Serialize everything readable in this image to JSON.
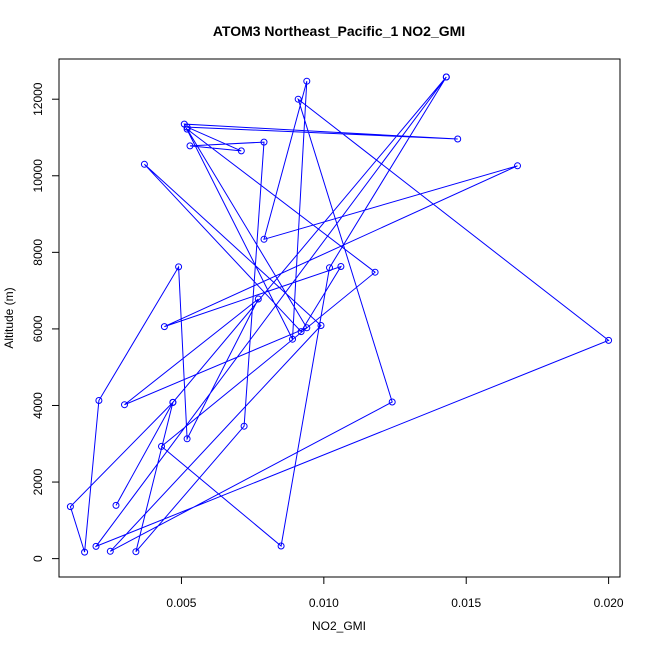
{
  "chart_data": {
    "type": "line",
    "title": "ATOM3 Northeast_Pacific_1 NO2_GMI",
    "xlabel": "NO2_GMI",
    "ylabel": "Altitude (m)",
    "xlim": [
      0.0007,
      0.0204
    ],
    "ylim": [
      -480,
      13050
    ],
    "x_ticks": [
      0.005,
      0.01,
      0.015,
      0.02
    ],
    "x_tick_labels": [
      "0.005",
      "0.010",
      "0.015",
      "0.020"
    ],
    "y_ticks": [
      0,
      2000,
      4000,
      6000,
      8000,
      10000,
      12000
    ],
    "y_tick_labels": [
      "0",
      "2000",
      "4000",
      "6000",
      "8000",
      "10000",
      "12000"
    ],
    "grid": false,
    "legend": "none",
    "series": [
      {
        "color": "#0000ff",
        "marker": "open-circle",
        "points": [
          {
            "x": 0.0143,
            "y": 12580
          },
          {
            "x": 0.0047,
            "y": 4080
          },
          {
            "x": 0.0034,
            "y": 180
          },
          {
            "x": 0.0072,
            "y": 3460
          },
          {
            "x": 0.0079,
            "y": 10880
          },
          {
            "x": 0.0053,
            "y": 10780
          },
          {
            "x": 0.0071,
            "y": 10650
          },
          {
            "x": 0.0052,
            "y": 11270
          },
          {
            "x": 0.0147,
            "y": 10960
          },
          {
            "x": 0.0051,
            "y": 11350
          },
          {
            "x": 0.0089,
            "y": 5730
          },
          {
            "x": 0.0094,
            "y": 12470
          },
          {
            "x": 0.0079,
            "y": 8340
          },
          {
            "x": 0.0168,
            "y": 10260
          },
          {
            "x": 0.0044,
            "y": 6060
          },
          {
            "x": 0.0106,
            "y": 7630
          },
          {
            "x": 0.0092,
            "y": 5930
          },
          {
            "x": 0.0037,
            "y": 10300
          },
          {
            "x": 0.0099,
            "y": 6090
          },
          {
            "x": 0.0025,
            "y": 190
          },
          {
            "x": 0.0124,
            "y": 4090
          },
          {
            "x": 0.0091,
            "y": 12000
          },
          {
            "x": 0.02,
            "y": 5700
          },
          {
            "x": 0.002,
            "y": 320
          },
          {
            "x": 0.0143,
            "y": 12580
          },
          {
            "x": 0.0102,
            "y": 7600
          },
          {
            "x": 0.0085,
            "y": 330
          },
          {
            "x": 0.0043,
            "y": 2930
          },
          {
            "x": 0.0118,
            "y": 7480
          },
          {
            "x": 0.0052,
            "y": 11220
          },
          {
            "x": 0.0094,
            "y": 6030
          },
          {
            "x": 0.003,
            "y": 4020
          },
          {
            "x": 0.0077,
            "y": 6780
          },
          {
            "x": 0.0052,
            "y": 3130
          },
          {
            "x": 0.0049,
            "y": 7620
          },
          {
            "x": 0.0021,
            "y": 4130
          },
          {
            "x": 0.0016,
            "y": 170
          },
          {
            "x": 0.0011,
            "y": 1360
          },
          {
            "x": 0.0047,
            "y": 4080
          },
          {
            "x": 0.0027,
            "y": 1390
          }
        ]
      }
    ]
  }
}
